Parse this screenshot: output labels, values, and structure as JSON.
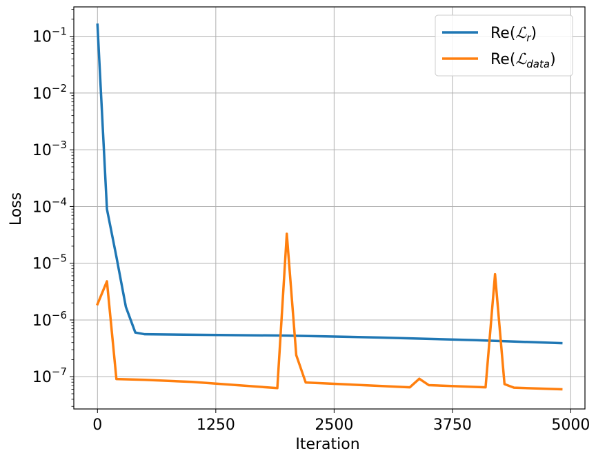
{
  "chart_data": {
    "type": "line",
    "title": "",
    "xlabel": "Iteration",
    "ylabel": "Loss",
    "xlim": [
      -250,
      5150
    ],
    "ylim": [
      2.7e-08,
      0.33
    ],
    "yscale": "log",
    "grid": true,
    "legend_position": "top-right",
    "x_ticks": [
      0,
      1250,
      2500,
      3750,
      5000
    ],
    "x_tick_labels": [
      "0",
      "1250",
      "2500",
      "3750",
      "5000"
    ],
    "y_ticks": [
      1e-07,
      1e-06,
      1e-05,
      0.0001,
      0.001,
      0.01,
      0.1
    ],
    "y_tick_labels": [
      {
        "base": "10",
        "exp": "−7"
      },
      {
        "base": "10",
        "exp": "−6"
      },
      {
        "base": "10",
        "exp": "−5"
      },
      {
        "base": "10",
        "exp": "−4"
      },
      {
        "base": "10",
        "exp": "−3"
      },
      {
        "base": "10",
        "exp": "−2"
      },
      {
        "base": "10",
        "exp": "−1"
      }
    ],
    "series": [
      {
        "name": "Re(ℒ_r)",
        "legend_main": "Re(",
        "legend_script": "ℒ",
        "legend_sub": "r",
        "legend_close": ")",
        "color": "#1f77b4",
        "x": [
          0,
          100,
          200,
          300,
          400,
          500,
          1000,
          2000,
          3000,
          4000,
          4900
        ],
        "y": [
          0.16,
          9e-05,
          1.3e-05,
          1.7e-06,
          6e-07,
          5.6e-07,
          5.5e-07,
          5.3e-07,
          4.9e-07,
          4.4e-07,
          3.9e-07
        ]
      },
      {
        "name": "Re(ℒ_data)",
        "legend_main": "Re(",
        "legend_script": "ℒ",
        "legend_sub": "data",
        "legend_close": ")",
        "color": "#ff7f0e",
        "x": [
          0,
          100,
          200,
          500,
          1000,
          1900,
          2000,
          2100,
          2200,
          3300,
          3400,
          3500,
          4100,
          4200,
          4300,
          4400,
          4900
        ],
        "y": [
          1.9e-06,
          4.8e-06,
          9.1e-08,
          8.8e-08,
          8.1e-08,
          6.3e-08,
          3.3e-05,
          2.4e-07,
          7.9e-08,
          6.5e-08,
          9.2e-08,
          7.1e-08,
          6.5e-08,
          6.4e-06,
          7.4e-08,
          6.4e-08,
          6e-08
        ]
      }
    ]
  }
}
